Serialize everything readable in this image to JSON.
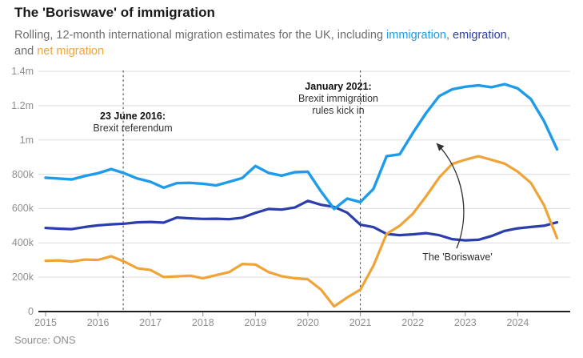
{
  "header": {
    "title": "The 'Boriswave' of immigration",
    "subtitle_segments": [
      {
        "text": "Rolling, 12-month international migration estimates for the UK, including "
      },
      {
        "text": "immigration",
        "color": "#1e9be9"
      },
      {
        "text": ", "
      },
      {
        "text": "emigration",
        "color": "#2b3dab"
      },
      {
        "text": ",",
        "br": true
      },
      {
        "text": "and "
      },
      {
        "text": "net migration",
        "color": "#f0a437"
      }
    ]
  },
  "chart_data": {
    "type": "line",
    "title": "The 'Boriswave' of immigration",
    "xlabel": "",
    "ylabel": "",
    "unit": "thousands of people",
    "xlim": [
      2015,
      2024.9
    ],
    "ylim": [
      0,
      1400
    ],
    "grid": true,
    "legend_position": "in-subtitle",
    "x_ticks": [
      2015,
      2016,
      2017,
      2018,
      2019,
      2020,
      2021,
      2022,
      2023,
      2024
    ],
    "y_ticks": [
      {
        "v": 0,
        "label": "0"
      },
      {
        "v": 200,
        "label": "200k"
      },
      {
        "v": 400,
        "label": "400k"
      },
      {
        "v": 600,
        "label": "600k"
      },
      {
        "v": 800,
        "label": "800k"
      },
      {
        "v": 1000,
        "label": "1m"
      },
      {
        "v": 1200,
        "label": "1.2m"
      },
      {
        "v": 1400,
        "label": "1.4m"
      }
    ],
    "x": [
      2015.0,
      2015.25,
      2015.5,
      2015.75,
      2016.0,
      2016.25,
      2016.5,
      2016.75,
      2017.0,
      2017.25,
      2017.5,
      2017.75,
      2018.0,
      2018.25,
      2018.5,
      2018.75,
      2019.0,
      2019.25,
      2019.5,
      2019.75,
      2020.0,
      2020.25,
      2020.5,
      2020.75,
      2021.0,
      2021.25,
      2021.5,
      2021.75,
      2022.0,
      2022.25,
      2022.5,
      2022.75,
      2023.0,
      2023.25,
      2023.5,
      2023.75,
      2024.0,
      2024.25,
      2024.5,
      2024.75
    ],
    "series": [
      {
        "name": "immigration",
        "color": "#1e9be9",
        "width": 3.4,
        "values": [
          780,
          775,
          770,
          790,
          806,
          830,
          806,
          775,
          756,
          722,
          748,
          750,
          745,
          735,
          756,
          778,
          848,
          808,
          792,
          812,
          815,
          700,
          598,
          658,
          638,
          715,
          905,
          916,
          1040,
          1155,
          1255,
          1295,
          1310,
          1318,
          1307,
          1325,
          1300,
          1238,
          1110,
          945
        ]
      },
      {
        "name": "emigration",
        "color": "#2b3dab",
        "width": 3.2,
        "values": [
          487,
          483,
          480,
          493,
          502,
          508,
          512,
          520,
          522,
          518,
          548,
          543,
          540,
          541,
          538,
          547,
          575,
          598,
          594,
          606,
          645,
          622,
          610,
          576,
          506,
          492,
          452,
          445,
          450,
          457,
          445,
          422,
          415,
          418,
          440,
          470,
          485,
          493,
          500,
          520
        ]
      },
      {
        "name": "net migration",
        "color": "#f0a437",
        "width": 3.2,
        "values": [
          296,
          298,
          291,
          303,
          301,
          322,
          291,
          252,
          242,
          201,
          205,
          209,
          194,
          212,
          230,
          277,
          274,
          230,
          206,
          194,
          188,
          128,
          30,
          82,
          128,
          268,
          452,
          500,
          570,
          670,
          780,
          860,
          885,
          905,
          884,
          862,
          815,
          750,
          620,
          428
        ]
      }
    ],
    "annotations": {
      "events": [
        {
          "year": 2016.48,
          "title": "23 June 2016:",
          "lines": [
            "Brexit referendum"
          ]
        },
        {
          "year": 2021.0,
          "title": "January 2021:",
          "lines": [
            "Brexit immigration",
            "rules kick in"
          ]
        }
      ],
      "callout": {
        "text": "The 'Boriswave'",
        "points_to": "immigration line rise"
      }
    }
  },
  "footer": {
    "source": "Source: ONS"
  }
}
